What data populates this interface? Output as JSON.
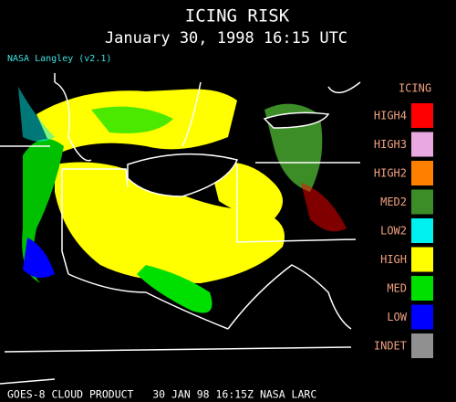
{
  "header": {
    "title": "ICING RISK",
    "subtitle": "January 30, 1998 16:15 UTC",
    "source": "NASA Langley (v2.1)"
  },
  "legend": {
    "title": "ICING",
    "items": [
      {
        "label": "HIGH4",
        "color": "#ff0000"
      },
      {
        "label": "HIGH3",
        "color": "#e8a8e0"
      },
      {
        "label": "HIGH2",
        "color": "#ff8000"
      },
      {
        "label": "MED2",
        "color": "#3c8c28"
      },
      {
        "label": "LOW2",
        "color": "#00f0f0"
      },
      {
        "label": "HIGH",
        "color": "#ffff00"
      },
      {
        "label": "MED",
        "color": "#00e000"
      },
      {
        "label": "LOW",
        "color": "#0000ff"
      },
      {
        "label": "INDET",
        "color": "#909090"
      }
    ]
  },
  "footer": {
    "text": "GOES-8 CLOUD PRODUCT   30 JAN 98 16:15Z NASA LARC"
  }
}
